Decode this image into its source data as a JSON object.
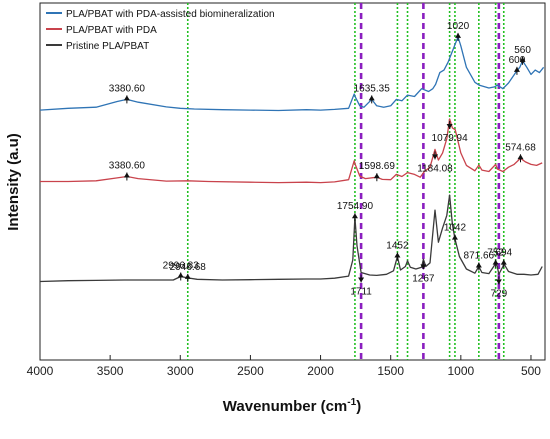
{
  "chart_data": {
    "type": "line",
    "title": "",
    "xlabel": "Wavenumber (cm",
    "xlabel_sup": "-1",
    "xlabel_close": ")",
    "ylabel": "Intensity (a.u)",
    "xlim": [
      4000,
      400
    ],
    "x_reversed": true,
    "y_ticks_shown": false,
    "x_ticks": [
      4000,
      3500,
      3000,
      2500,
      2000,
      1500,
      1000,
      500
    ],
    "legend_position": "top-left",
    "series": [
      {
        "name": "PLA/PBAT with PDA-assisted biomineralization",
        "color": "#2f74b5",
        "points": [
          [
            4000,
            0.7
          ],
          [
            3800,
            0.705
          ],
          [
            3600,
            0.708
          ],
          [
            3450,
            0.724
          ],
          [
            3380.6,
            0.73
          ],
          [
            3300,
            0.722
          ],
          [
            3100,
            0.709
          ],
          [
            3000,
            0.705
          ],
          [
            2900,
            0.703
          ],
          [
            2700,
            0.701
          ],
          [
            2500,
            0.7
          ],
          [
            2300,
            0.699
          ],
          [
            2100,
            0.701
          ],
          [
            2000,
            0.7
          ],
          [
            1900,
            0.702
          ],
          [
            1800,
            0.705
          ],
          [
            1760,
            0.745
          ],
          [
            1750,
            0.735
          ],
          [
            1720,
            0.712
          ],
          [
            1690,
            0.708
          ],
          [
            1635.35,
            0.73
          ],
          [
            1600,
            0.712
          ],
          [
            1550,
            0.708
          ],
          [
            1500,
            0.712
          ],
          [
            1460,
            0.73
          ],
          [
            1420,
            0.726
          ],
          [
            1380,
            0.742
          ],
          [
            1330,
            0.738
          ],
          [
            1280,
            0.76
          ],
          [
            1230,
            0.752
          ],
          [
            1200,
            0.76
          ],
          [
            1180,
            0.772
          ],
          [
            1150,
            0.805
          ],
          [
            1120,
            0.812
          ],
          [
            1090,
            0.835
          ],
          [
            1050,
            0.875
          ],
          [
            1020,
            0.905
          ],
          [
            1000,
            0.88
          ],
          [
            960,
            0.82
          ],
          [
            900,
            0.778
          ],
          [
            870,
            0.77
          ],
          [
            800,
            0.762
          ],
          [
            760,
            0.765
          ],
          [
            740,
            0.77
          ],
          [
            700,
            0.76
          ],
          [
            660,
            0.776
          ],
          [
            600,
            0.81
          ],
          [
            580,
            0.82
          ],
          [
            560,
            0.838
          ],
          [
            530,
            0.82
          ],
          [
            500,
            0.8
          ],
          [
            470,
            0.812
          ],
          [
            440,
            0.805
          ],
          [
            410,
            0.82
          ]
        ]
      },
      {
        "name": "PLA/PBAT with PDA",
        "color": "#c9434c",
        "points": [
          [
            4000,
            0.5
          ],
          [
            3800,
            0.5
          ],
          [
            3600,
            0.502
          ],
          [
            3450,
            0.51
          ],
          [
            3380.6,
            0.514
          ],
          [
            3300,
            0.508
          ],
          [
            3100,
            0.501
          ],
          [
            2946,
            0.502
          ],
          [
            2800,
            0.5
          ],
          [
            2500,
            0.498
          ],
          [
            2300,
            0.497
          ],
          [
            2100,
            0.498
          ],
          [
            2000,
            0.497
          ],
          [
            1900,
            0.499
          ],
          [
            1800,
            0.505
          ],
          [
            1760,
            0.558
          ],
          [
            1750,
            0.545
          ],
          [
            1720,
            0.515
          ],
          [
            1680,
            0.508
          ],
          [
            1598.69,
            0.512
          ],
          [
            1560,
            0.506
          ],
          [
            1500,
            0.505
          ],
          [
            1460,
            0.52
          ],
          [
            1420,
            0.514
          ],
          [
            1380,
            0.525
          ],
          [
            1330,
            0.52
          ],
          [
            1290,
            0.512
          ],
          [
            1260,
            0.528
          ],
          [
            1220,
            0.54
          ],
          [
            1184.08,
            0.59
          ],
          [
            1160,
            0.56
          ],
          [
            1130,
            0.58
          ],
          [
            1100,
            0.62
          ],
          [
            1079.94,
            0.675
          ],
          [
            1060,
            0.65
          ],
          [
            1040,
            0.645
          ],
          [
            1000,
            0.58
          ],
          [
            960,
            0.545
          ],
          [
            900,
            0.53
          ],
          [
            871,
            0.546
          ],
          [
            850,
            0.532
          ],
          [
            800,
            0.528
          ],
          [
            752,
            0.548
          ],
          [
            740,
            0.535
          ],
          [
            700,
            0.528
          ],
          [
            660,
            0.54
          ],
          [
            620,
            0.548
          ],
          [
            574.68,
            0.565
          ],
          [
            540,
            0.555
          ],
          [
            500,
            0.548
          ],
          [
            460,
            0.545
          ],
          [
            420,
            0.552
          ]
        ]
      },
      {
        "name": "Pristine PLA/PBAT",
        "color": "#3a3a3a",
        "points": [
          [
            4000,
            0.22
          ],
          [
            3800,
            0.222
          ],
          [
            3600,
            0.223
          ],
          [
            3400,
            0.224
          ],
          [
            3200,
            0.224
          ],
          [
            3050,
            0.224
          ],
          [
            2996.83,
            0.234
          ],
          [
            2946.68,
            0.23
          ],
          [
            2880,
            0.226
          ],
          [
            2700,
            0.224
          ],
          [
            2500,
            0.225
          ],
          [
            2300,
            0.226
          ],
          [
            2100,
            0.227
          ],
          [
            2000,
            0.227
          ],
          [
            1900,
            0.229
          ],
          [
            1800,
            0.235
          ],
          [
            1770,
            0.28
          ],
          [
            1754.9,
            0.4
          ],
          [
            1740,
            0.32
          ],
          [
            1711,
            0.245
          ],
          [
            1650,
            0.238
          ],
          [
            1600,
            0.237
          ],
          [
            1530,
            0.24
          ],
          [
            1480,
            0.25
          ],
          [
            1452,
            0.29
          ],
          [
            1430,
            0.252
          ],
          [
            1395,
            0.262
          ],
          [
            1380,
            0.278
          ],
          [
            1360,
            0.26
          ],
          [
            1320,
            0.255
          ],
          [
            1280,
            0.26
          ],
          [
            1267,
            0.282
          ],
          [
            1250,
            0.262
          ],
          [
            1220,
            0.272
          ],
          [
            1184.08,
            0.42
          ],
          [
            1160,
            0.33
          ],
          [
            1130,
            0.37
          ],
          [
            1100,
            0.405
          ],
          [
            1079.94,
            0.462
          ],
          [
            1060,
            0.38
          ],
          [
            1042,
            0.34
          ],
          [
            1010,
            0.29
          ],
          [
            960,
            0.255
          ],
          [
            900,
            0.243
          ],
          [
            871.66,
            0.262
          ],
          [
            850,
            0.245
          ],
          [
            800,
            0.242
          ],
          [
            752,
            0.27
          ],
          [
            740,
            0.262
          ],
          [
            729,
            0.24
          ],
          [
            700,
            0.262
          ],
          [
            694,
            0.27
          ],
          [
            660,
            0.248
          ],
          [
            600,
            0.24
          ],
          [
            550,
            0.24
          ],
          [
            500,
            0.238
          ],
          [
            450,
            0.24
          ],
          [
            420,
            0.262
          ]
        ]
      }
    ],
    "vertical_lines": [
      {
        "x": 2946.68,
        "color": "#22c022",
        "style": "dotted"
      },
      {
        "x": 1754.9,
        "color": "#22c022",
        "style": "dotted"
      },
      {
        "x": 1711,
        "color": "#8a1fbf",
        "style": "dashed"
      },
      {
        "x": 1452,
        "color": "#22c022",
        "style": "dotted"
      },
      {
        "x": 1380,
        "color": "#22c022",
        "style": "dotted"
      },
      {
        "x": 1267,
        "color": "#8a1fbf",
        "style": "dashed"
      },
      {
        "x": 1079.94,
        "color": "#22c022",
        "style": "dotted"
      },
      {
        "x": 1042,
        "color": "#22c022",
        "style": "dotted"
      },
      {
        "x": 871.66,
        "color": "#22c022",
        "style": "dotted"
      },
      {
        "x": 752,
        "color": "#22c022",
        "style": "dotted"
      },
      {
        "x": 729,
        "color": "#8a1fbf",
        "style": "dashed"
      },
      {
        "x": 694,
        "color": "#22c022",
        "style": "dotted"
      }
    ],
    "annotations": [
      {
        "text": "3380.60",
        "x": 3380.6,
        "y": 0.73,
        "dir": "up"
      },
      {
        "text": "1635.35",
        "x": 1635.35,
        "y": 0.73,
        "dir": "up"
      },
      {
        "text": "1020",
        "x": 1020,
        "y": 0.905,
        "dir": "up"
      },
      {
        "text": "600",
        "x": 600,
        "y": 0.81,
        "dir": "up"
      },
      {
        "text": "560",
        "x": 560,
        "y": 0.838,
        "dir": "up"
      },
      {
        "text": "3380.60",
        "x": 3380.6,
        "y": 0.514,
        "dir": "up"
      },
      {
        "text": "1598.69",
        "x": 1598.69,
        "y": 0.512,
        "dir": "up"
      },
      {
        "text": "1184.08",
        "x": 1184.08,
        "y": 0.59,
        "dir": "down"
      },
      {
        "text": "1079.94",
        "x": 1079.94,
        "y": 0.675,
        "dir": "down"
      },
      {
        "text": "574.68",
        "x": 574.68,
        "y": 0.565,
        "dir": "up"
      },
      {
        "text": "1754.90",
        "x": 1754.9,
        "y": 0.4,
        "dir": "up"
      },
      {
        "text": "2946.68",
        "x": 2946.68,
        "y": 0.23,
        "dir": "up"
      },
      {
        "text": "2996.83",
        "x": 2996.83,
        "y": 0.234,
        "dir": "up"
      },
      {
        "text": "1452",
        "x": 1452,
        "y": 0.29,
        "dir": "up"
      },
      {
        "text": "1042",
        "x": 1042,
        "y": 0.34,
        "dir": "up"
      },
      {
        "text": "871.66",
        "x": 871.66,
        "y": 0.262,
        "dir": "up"
      },
      {
        "text": "752",
        "x": 752,
        "y": 0.27,
        "dir": "up"
      },
      {
        "text": "694",
        "x": 694,
        "y": 0.27,
        "dir": "up"
      },
      {
        "text": "1711",
        "x": 1711,
        "y": 0.245,
        "dir": "down"
      },
      {
        "text": "1267",
        "x": 1267,
        "y": 0.282,
        "dir": "down"
      },
      {
        "text": "729",
        "x": 729,
        "y": 0.24,
        "dir": "down"
      }
    ]
  }
}
